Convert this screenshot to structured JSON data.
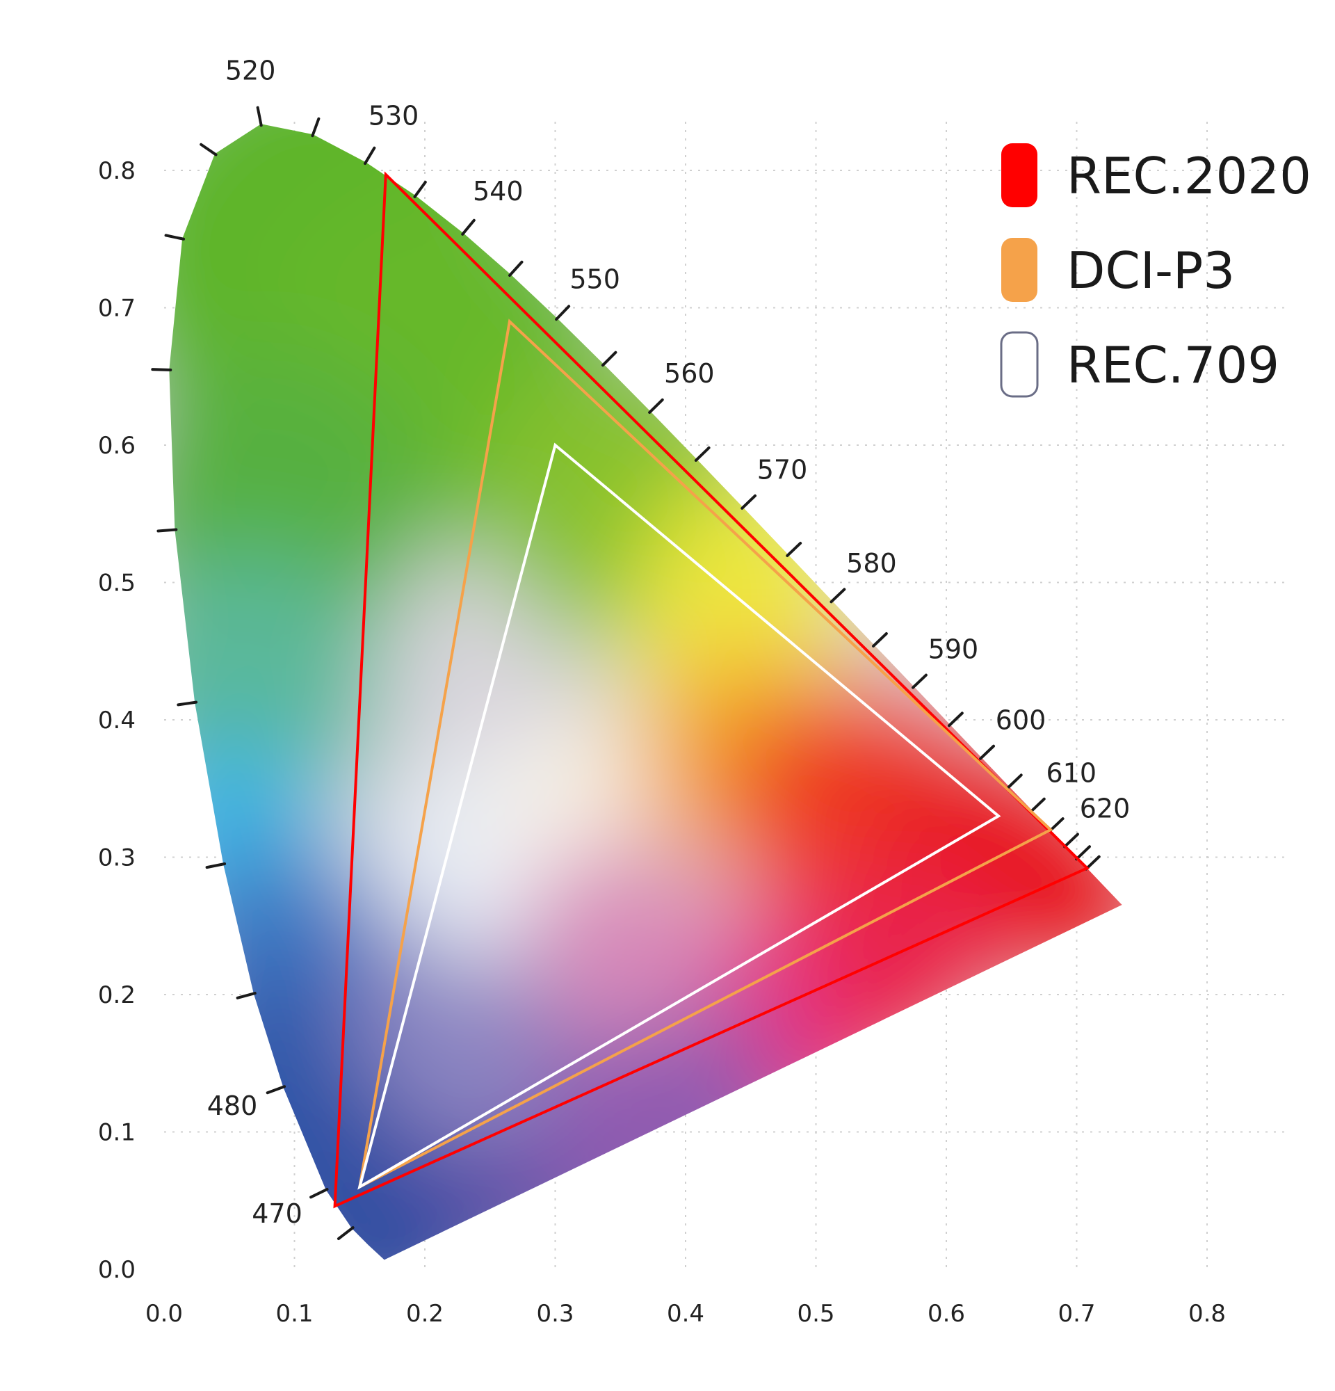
{
  "chart_data": {
    "type": "scatter",
    "title": "",
    "xlabel": "",
    "ylabel": "",
    "xlim": [
      0.0,
      0.8
    ],
    "ylim": [
      0.0,
      0.8
    ],
    "grid": true,
    "legend_position": "top-right",
    "x_ticks": [
      "0.0",
      "0.1",
      "0.2",
      "0.3",
      "0.4",
      "0.5",
      "0.6",
      "0.7",
      "0.8"
    ],
    "y_ticks": [
      "0.0",
      "0.1",
      "0.2",
      "0.3",
      "0.4",
      "0.5",
      "0.6",
      "0.7",
      "0.8"
    ],
    "spectral_locus": {
      "x": [
        0.1689,
        0.1566,
        0.144,
        0.1241,
        0.0913,
        0.0687,
        0.0454,
        0.0235,
        0.0082,
        0.0039,
        0.0139,
        0.0389,
        0.0743,
        0.1142,
        0.1547,
        0.1929,
        0.2296,
        0.2658,
        0.3016,
        0.3373,
        0.3731,
        0.4087,
        0.4441,
        0.4788,
        0.5125,
        0.5448,
        0.5752,
        0.6029,
        0.627,
        0.6482,
        0.6658,
        0.6801,
        0.6915,
        0.7006,
        0.7079,
        0.7347
      ],
      "y": [
        0.0069,
        0.0177,
        0.0297,
        0.0578,
        0.1327,
        0.2007,
        0.295,
        0.4127,
        0.5384,
        0.6548,
        0.7502,
        0.812,
        0.8338,
        0.8262,
        0.8059,
        0.7816,
        0.7543,
        0.7243,
        0.6923,
        0.6589,
        0.6245,
        0.5896,
        0.5547,
        0.5202,
        0.4866,
        0.4544,
        0.4242,
        0.3965,
        0.3725,
        0.3514,
        0.334,
        0.3197,
        0.3083,
        0.2993,
        0.292,
        0.2653
      ]
    },
    "wavelength_markers": [
      {
        "label": "470",
        "nm": 470,
        "x": 0.1241,
        "y": 0.0578
      },
      {
        "label": "480",
        "nm": 480,
        "x": 0.0913,
        "y": 0.1327
      },
      {
        "label": "520",
        "nm": 520,
        "x": 0.0743,
        "y": 0.8338
      },
      {
        "label": "530",
        "nm": 530,
        "x": 0.1547,
        "y": 0.8059
      },
      {
        "label": "540",
        "nm": 540,
        "x": 0.2296,
        "y": 0.7543
      },
      {
        "label": "550",
        "nm": 550,
        "x": 0.3016,
        "y": 0.6923
      },
      {
        "label": "560",
        "nm": 560,
        "x": 0.3731,
        "y": 0.6245
      },
      {
        "label": "570",
        "nm": 570,
        "x": 0.4441,
        "y": 0.5547
      },
      {
        "label": "580",
        "nm": 580,
        "x": 0.5125,
        "y": 0.4866
      },
      {
        "label": "590",
        "nm": 590,
        "x": 0.5752,
        "y": 0.4242
      },
      {
        "label": "600",
        "nm": 600,
        "x": 0.627,
        "y": 0.3725
      },
      {
        "label": "610",
        "nm": 610,
        "x": 0.6658,
        "y": 0.334
      },
      {
        "label": "620",
        "nm": 620,
        "x": 0.6915,
        "y": 0.3083
      }
    ],
    "series": [
      {
        "name": "REC.2020",
        "color": "#ff0000",
        "points": [
          [
            0.708,
            0.292
          ],
          [
            0.17,
            0.797
          ],
          [
            0.131,
            0.046
          ]
        ]
      },
      {
        "name": "DCI-P3",
        "color": "#f5a24a",
        "points": [
          [
            0.68,
            0.32
          ],
          [
            0.265,
            0.69
          ],
          [
            0.15,
            0.06
          ]
        ]
      },
      {
        "name": "REC.709",
        "color": "#ffffff",
        "points": [
          [
            0.64,
            0.33
          ],
          [
            0.3,
            0.6
          ],
          [
            0.15,
            0.06
          ]
        ]
      }
    ]
  },
  "colors": {
    "background": "#ffffff",
    "grid": "#d0d0d0",
    "rec709_legend_outline": "#6a6d86"
  }
}
